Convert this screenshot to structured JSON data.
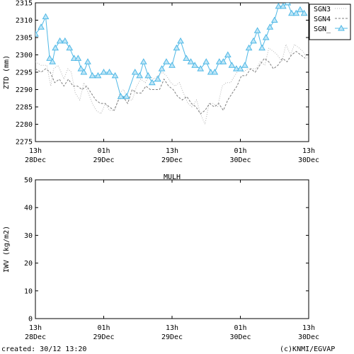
{
  "footer": {
    "created": "created: 30/12 13:20",
    "credit": "(c)KNMI/EGVAP"
  },
  "colors": {
    "sgn3": "#b4b4b4",
    "sgn4": "#7f7f7f",
    "sgn": "#4fb8e6"
  },
  "chart_data": [
    {
      "type": "line",
      "title": "",
      "xlabel": "",
      "ylabel": "ZTD (mm)",
      "xlim": [
        0,
        48
      ],
      "ylim": [
        2275,
        2315
      ],
      "yticks": [
        2275,
        2280,
        2285,
        2290,
        2295,
        2300,
        2305,
        2310,
        2315
      ],
      "xticks": [
        {
          "x": 0,
          "top": "13h",
          "bottom": "28Dec"
        },
        {
          "x": 12,
          "top": "01h",
          "bottom": "29Dec"
        },
        {
          "x": 24,
          "top": "13h",
          "bottom": "29Dec"
        },
        {
          "x": 36,
          "top": "01h",
          "bottom": "30Dec"
        },
        {
          "x": 48,
          "top": "13h",
          "bottom": "30Dec"
        }
      ],
      "legend_position": "top-right",
      "series": [
        {
          "name": "SGN3",
          "style": "dotted",
          "x": [
            0,
            1,
            2,
            2.7,
            3.2,
            4,
            5,
            5.7,
            6.3,
            7,
            7.8,
            8.5,
            9.3,
            10,
            10.7,
            11.5,
            12.3,
            13,
            14,
            14.8,
            15.5,
            16.3,
            17,
            17.8,
            18.5,
            19.3,
            20,
            20.8,
            21.5,
            22.3,
            23,
            23.8,
            24.5,
            25.3,
            26,
            26.8,
            27.5,
            28.3,
            29,
            29.8,
            30.5,
            31.3,
            32,
            32.8,
            33.5,
            34.3,
            35,
            35.8,
            36.5,
            37.3,
            38,
            38.8,
            39.5,
            40.3,
            41,
            41.8,
            42.5,
            43.3,
            44,
            44.8,
            45.5,
            46.3,
            47,
            47.7
          ],
          "values": [
            2298,
            2297,
            2297,
            2291,
            2296,
            2297,
            2293,
            2296,
            2295,
            2289,
            2287,
            2292,
            2289,
            2286,
            2284,
            2283,
            2286,
            2284,
            2284,
            2289,
            2290,
            2287,
            2287,
            2291,
            2293,
            2292,
            2294,
            2293,
            2294,
            2295,
            2294,
            2292,
            2291,
            2292,
            2289,
            2286,
            2285,
            2287,
            2283,
            2280,
            2286,
            2286,
            2285,
            2291,
            2292,
            2292,
            2294,
            2296,
            2295,
            2296,
            2296,
            2296,
            2298,
            2297,
            2302,
            2301,
            2300,
            2298,
            2303,
            2300,
            2303,
            2302,
            2301,
            2299
          ]
        },
        {
          "name": "SGN4",
          "style": "dashed",
          "x": [
            0,
            1,
            1.8,
            2.6,
            3.4,
            4.2,
            5,
            5.8,
            6.6,
            7.4,
            8.2,
            9,
            9.8,
            10.6,
            11.4,
            12.2,
            13,
            13.8,
            14.6,
            15.4,
            16.2,
            17,
            17.8,
            18.6,
            19.4,
            20.2,
            21,
            21.8,
            22.6,
            23.4,
            24.2,
            25,
            25.8,
            26.6,
            27.4,
            28.2,
            29,
            29.8,
            30.6,
            31.4,
            32.2,
            33,
            33.8,
            34.6,
            35.4,
            36.2,
            37,
            37.8,
            38.6,
            39.4,
            40.2,
            41,
            41.8,
            42.6,
            43.4,
            44.2,
            45,
            45.8,
            46.6,
            47.4
          ],
          "values": [
            2296,
            2295,
            2296,
            2295,
            2292,
            2293,
            2291,
            2293,
            2291,
            2291,
            2290,
            2291,
            2289,
            2287,
            2286,
            2286,
            2285,
            2284,
            2287,
            2288,
            2286,
            2290,
            2289,
            2289,
            2291,
            2290,
            2290,
            2290,
            2293,
            2291,
            2290,
            2288,
            2287,
            2288,
            2286,
            2285,
            2283,
            2284,
            2286,
            2285,
            2286,
            2284,
            2287,
            2289,
            2291,
            2294,
            2294,
            2296,
            2295,
            2297,
            2299,
            2298,
            2296,
            2297,
            2299,
            2298,
            2300,
            2301,
            2300,
            2299
          ]
        },
        {
          "name": "SGN_",
          "style": "solid-triangles",
          "x": [
            0,
            1,
            1.8,
            2.5,
            3,
            3.5,
            4.3,
            5.2,
            6,
            6.8,
            7.5,
            8,
            8.5,
            9.2,
            10,
            11,
            12,
            13,
            14,
            15,
            16,
            17.5,
            18.3,
            19,
            19.8,
            20.5,
            21.5,
            22.2,
            23,
            24,
            24.8,
            25.5,
            26.5,
            27.3,
            28,
            29,
            30,
            30.8,
            31.5,
            32.3,
            33,
            33.8,
            34.5,
            35.3,
            36,
            36.8,
            37.5,
            38.3,
            39,
            39.8,
            40.5,
            41.2,
            42,
            42.7,
            43.5,
            44.3,
            45,
            45.8,
            46.5,
            47.2
          ],
          "values": [
            2306,
            2308,
            2311,
            2299,
            2298,
            2302,
            2304,
            2304,
            2302,
            2299,
            2299,
            2296,
            2295,
            2298,
            2294,
            2294,
            2295,
            2295,
            2294,
            2288,
            2288,
            2295,
            2294,
            2298,
            2294,
            2292,
            2293,
            2296,
            2298,
            2297,
            2302,
            2304,
            2299,
            2298,
            2297,
            2296,
            2298,
            2295,
            2295,
            2298,
            2298,
            2300,
            2297,
            2296,
            2296,
            2297,
            2302,
            2304,
            2307,
            2302,
            2305,
            2308,
            2310,
            2314,
            2314,
            2315,
            2312,
            2312,
            2313,
            2312
          ]
        }
      ]
    },
    {
      "type": "line",
      "title": "MULH",
      "xlabel": "",
      "ylabel": "IWV (kg/m2)",
      "xlim": [
        0,
        48
      ],
      "ylim": [
        0,
        50
      ],
      "yticks": [
        0,
        10,
        20,
        30,
        40,
        50
      ],
      "xticks": [
        {
          "x": 0,
          "top": "13h",
          "bottom": "28Dec"
        },
        {
          "x": 12,
          "top": "01h",
          "bottom": "29Dec"
        },
        {
          "x": 24,
          "top": "13h",
          "bottom": "29Dec"
        },
        {
          "x": 36,
          "top": "01h",
          "bottom": "30Dec"
        },
        {
          "x": 48,
          "top": "13h",
          "bottom": "30Dec"
        }
      ],
      "series": []
    }
  ]
}
